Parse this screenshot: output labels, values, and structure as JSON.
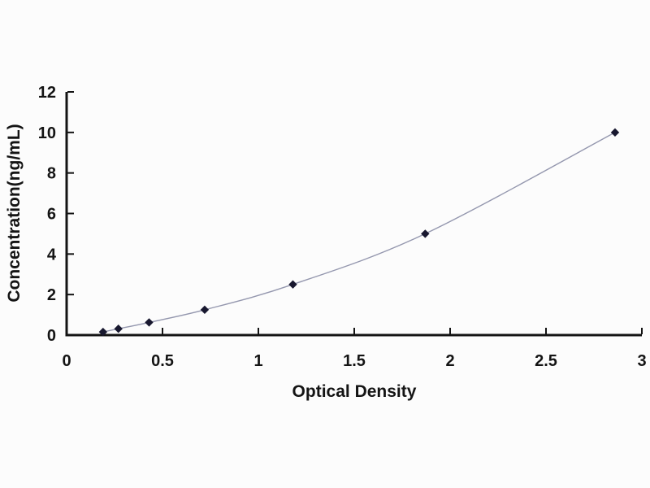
{
  "chart_data": {
    "type": "line",
    "title": "",
    "xlabel": "Optical Density",
    "ylabel": "Concentration(ng/mL)",
    "x": [
      0.19,
      0.27,
      0.43,
      0.72,
      1.18,
      1.87,
      2.86
    ],
    "y": [
      0.156,
      0.312,
      0.625,
      1.25,
      2.5,
      5,
      10
    ],
    "xlim": [
      0,
      3
    ],
    "ylim": [
      0,
      12
    ],
    "x_ticks": [
      0,
      0.5,
      1,
      1.5,
      2,
      2.5,
      3
    ],
    "x_tick_labels": [
      "0",
      "0.5",
      "1",
      "1.5",
      "2",
      "2.5",
      "3"
    ],
    "y_ticks": [
      0,
      2,
      4,
      6,
      8,
      10,
      12
    ],
    "y_tick_labels": [
      "0",
      "2",
      "4",
      "6",
      "8",
      "10",
      "12"
    ],
    "grid": false,
    "legend": null,
    "marker_shape": "diamond",
    "colors": {
      "background": "#fcfcfc",
      "axis": "#141414",
      "line": "#9497ae",
      "marker": "#18182f"
    }
  }
}
